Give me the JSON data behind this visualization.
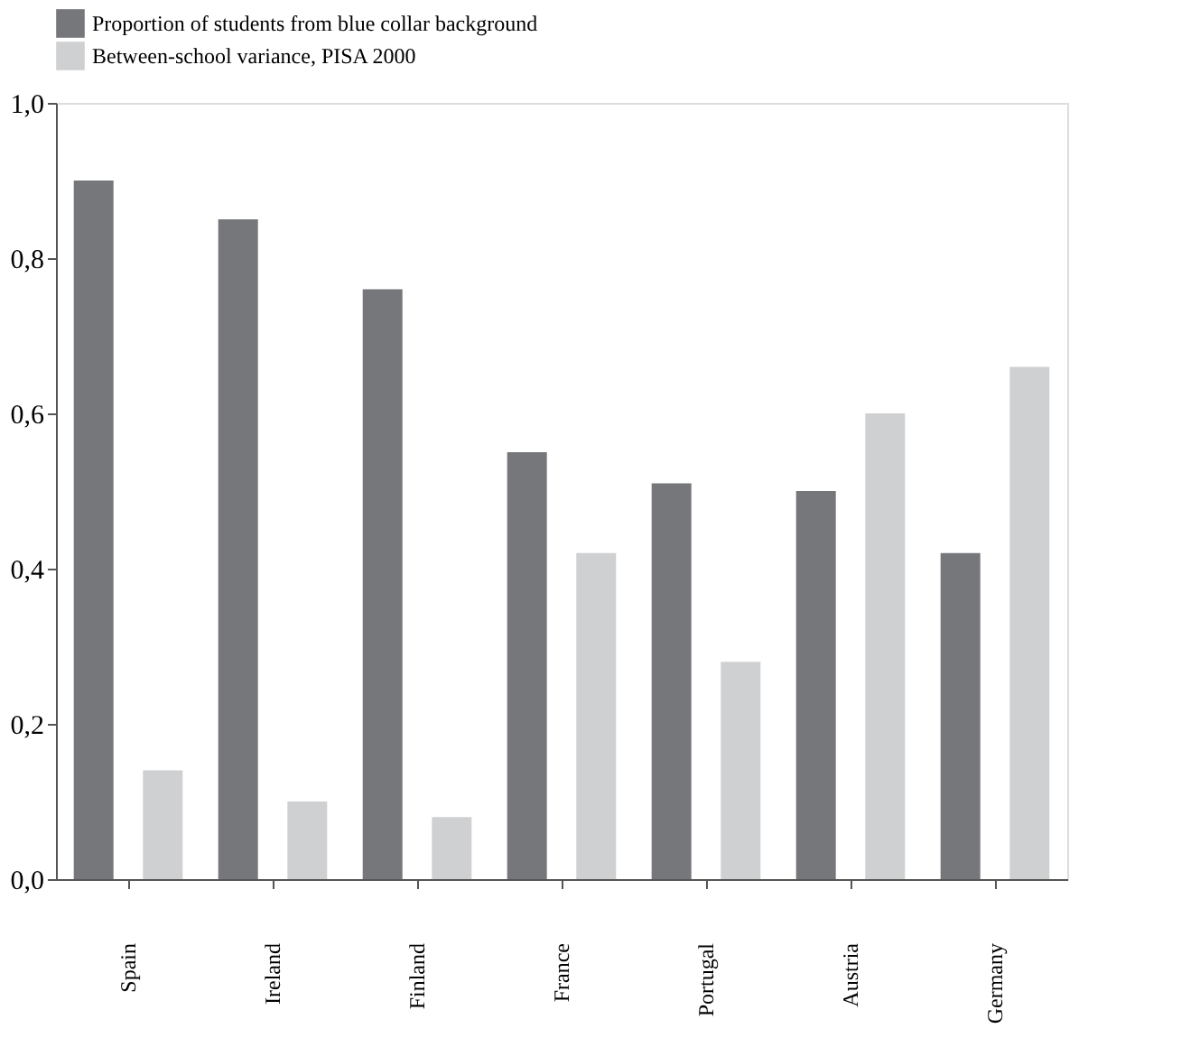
{
  "chart_data": {
    "type": "bar",
    "categories": [
      "Spain",
      "Ireland",
      "Finland",
      "France",
      "Portugal",
      "Austria",
      "Germany"
    ],
    "series": [
      {
        "name": "Proportion of students from blue collar background",
        "color": "#76777b",
        "values": [
          0.9,
          0.85,
          0.76,
          0.55,
          0.51,
          0.5,
          0.42
        ]
      },
      {
        "name": "Between-school variance, PISA 2000",
        "color": "#cfd0d2",
        "values": [
          0.14,
          0.1,
          0.08,
          0.42,
          0.28,
          0.6,
          0.66
        ]
      }
    ],
    "ylim": [
      0,
      1.0
    ],
    "yticks": [
      {
        "value": 0,
        "label": "0,0"
      },
      {
        "value": 0.2,
        "label": "0,2"
      },
      {
        "value": 0.4,
        "label": "0,4"
      },
      {
        "value": 0.6,
        "label": "0,6"
      },
      {
        "value": 0.8,
        "label": "0,8"
      },
      {
        "value": 1.0,
        "label": "1,0"
      }
    ],
    "grid": false,
    "legend": "top"
  }
}
